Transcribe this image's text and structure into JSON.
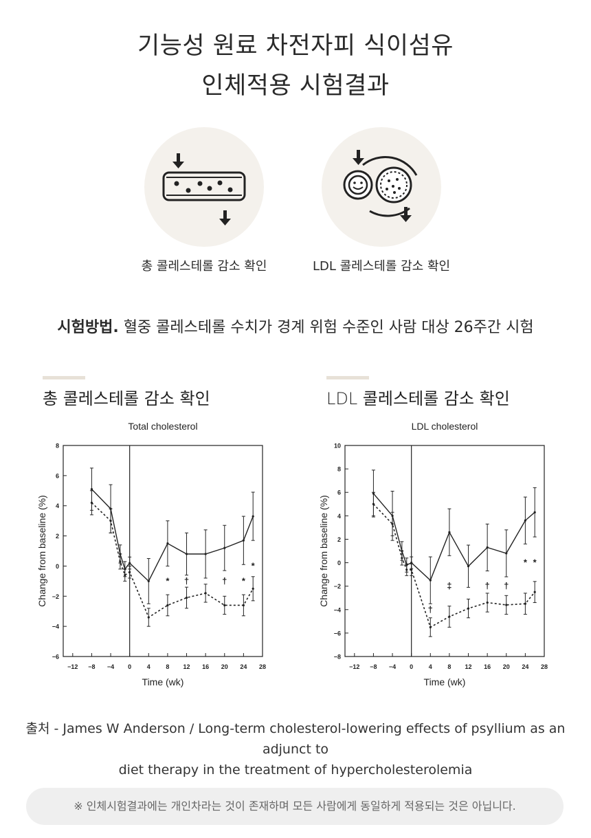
{
  "header": {
    "title_line1": "기능성 원료 차전자피 식이섬유",
    "title_line2": "인체적용 시험결과"
  },
  "icons": [
    {
      "name": "membrane-filter-icon",
      "caption": "총 콜레스테롤 감소 확인"
    },
    {
      "name": "ldl-particle-icon",
      "caption": "LDL 콜레스테롤 감소 확인"
    }
  ],
  "method": {
    "label": "시험방법.",
    "text": "혈중 콜레스테롤 수치가 경계 위험 수준인 사람 대상 26주간 시험"
  },
  "sections": [
    {
      "title": "총 콜레스테롤 감소 확인"
    },
    {
      "title": "LDL 콜레스테롤 감소 확인"
    }
  ],
  "chart_data": [
    {
      "type": "line",
      "title": "Total cholesterol",
      "xlabel": "Time (wk)",
      "ylabel": "Change from baseline (%)",
      "xlim": [
        -14,
        28
      ],
      "ylim": [
        -6,
        8
      ],
      "xticks": [
        -12,
        -8,
        -4,
        0,
        4,
        8,
        12,
        16,
        20,
        24,
        28
      ],
      "yticks": [
        -6,
        -4,
        -2,
        0,
        2,
        4,
        6,
        8
      ],
      "series": [
        {
          "style": "solid",
          "x": [
            -8,
            -4,
            -2,
            -1,
            0,
            4,
            8,
            12,
            16,
            20,
            24,
            26
          ],
          "y": [
            5.1,
            3.8,
            0.8,
            -0.2,
            0.2,
            -1.0,
            1.5,
            0.8,
            0.8,
            1.2,
            1.7,
            3.3
          ],
          "err": [
            1.4,
            1.6,
            0.6,
            0.5,
            0.4,
            1.5,
            1.5,
            1.4,
            1.6,
            1.5,
            1.6,
            1.6
          ]
        },
        {
          "style": "dashed",
          "x": [
            -8,
            -4,
            -2,
            -1,
            0,
            4,
            8,
            12,
            16,
            20,
            24,
            26
          ],
          "y": [
            4.2,
            3.0,
            0.3,
            -0.6,
            -0.4,
            -3.4,
            -2.6,
            -2.1,
            -1.8,
            -2.6,
            -2.6,
            -1.5
          ],
          "err": [
            0.8,
            0.8,
            0.5,
            0.4,
            0.4,
            0.6,
            0.7,
            0.7,
            0.6,
            0.6,
            0.7,
            0.8
          ]
        }
      ],
      "annotations": [
        {
          "x": 8,
          "y": -1.0,
          "text": "*"
        },
        {
          "x": 12,
          "y": -1.0,
          "text": "†"
        },
        {
          "x": 20,
          "y": -1.0,
          "text": "†"
        },
        {
          "x": 24,
          "y": -1.0,
          "text": "*"
        },
        {
          "x": 26,
          "y": 0.0,
          "text": "*"
        }
      ]
    },
    {
      "type": "line",
      "title": "LDL cholesterol",
      "xlabel": "Time (wk)",
      "ylabel": "Change from baseline (%)",
      "xlim": [
        -14,
        28
      ],
      "ylim": [
        -8,
        10
      ],
      "xticks": [
        -12,
        -8,
        -4,
        0,
        4,
        8,
        12,
        16,
        20,
        24,
        28
      ],
      "yticks": [
        -8,
        -6,
        -4,
        -2,
        0,
        2,
        4,
        6,
        8,
        10
      ],
      "series": [
        {
          "style": "solid",
          "x": [
            -8,
            -4,
            -2,
            -1,
            0,
            4,
            8,
            12,
            16,
            20,
            24,
            26
          ],
          "y": [
            5.9,
            4.0,
            1.0,
            -0.2,
            0.0,
            -1.5,
            2.6,
            -0.3,
            1.3,
            0.8,
            3.6,
            4.3
          ],
          "err": [
            2.0,
            2.1,
            0.8,
            0.6,
            0.5,
            2.0,
            2.0,
            1.8,
            2.0,
            2.0,
            2.0,
            2.1
          ]
        },
        {
          "style": "dashed",
          "x": [
            -8,
            -4,
            -2,
            -1,
            0,
            4,
            8,
            12,
            16,
            20,
            24,
            26
          ],
          "y": [
            5.0,
            3.3,
            0.4,
            -0.6,
            -0.6,
            -5.5,
            -4.6,
            -3.9,
            -3.4,
            -3.6,
            -3.5,
            -2.5
          ],
          "err": [
            1.0,
            1.0,
            0.6,
            0.5,
            0.5,
            0.8,
            0.9,
            0.8,
            0.8,
            0.8,
            0.9,
            0.9
          ]
        }
      ],
      "annotations": [
        {
          "x": 4,
          "y": -4.0,
          "text": "†"
        },
        {
          "x": 8,
          "y": -2.0,
          "text": "‡"
        },
        {
          "x": 16,
          "y": -2.0,
          "text": "†"
        },
        {
          "x": 20,
          "y": -2.0,
          "text": "†"
        },
        {
          "x": 24,
          "y": 0.0,
          "text": "*"
        },
        {
          "x": 26,
          "y": 0.0,
          "text": "*"
        }
      ]
    }
  ],
  "source": {
    "line1": "출처 - James W Anderson / Long-term cholesterol-lowering effects of psyllium as an adjunct to",
    "line2": "diet therapy in the treatment of hypercholesterolemia"
  },
  "notice": "※ 인체시험결과에는 개인차라는 것이 존재하며 모든 사람에게 동일하게 적용되는 것은 아닙니다."
}
